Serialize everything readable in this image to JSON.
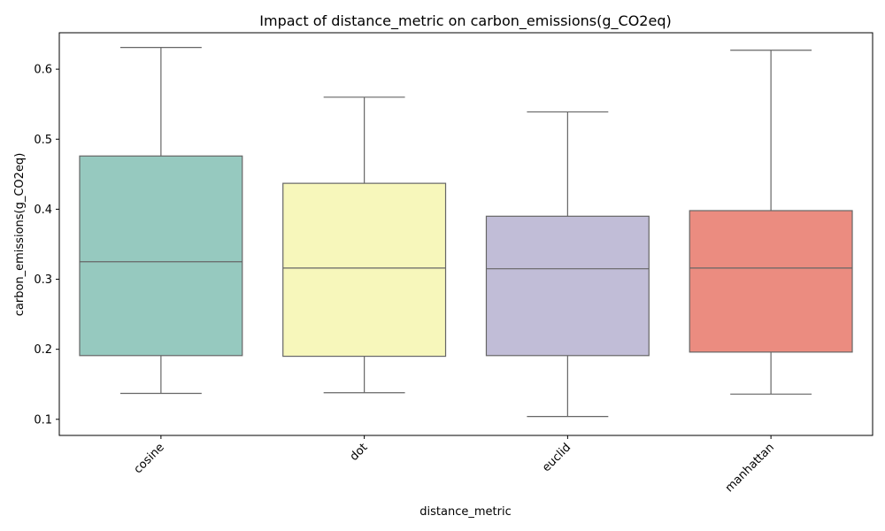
{
  "chart_data": {
    "type": "box",
    "title": "Impact of distance_metric on carbon_emissions(g_CO2eq)",
    "xlabel": "distance_metric",
    "ylabel": "carbon_emissions(g_CO2eq)",
    "ylim": [
      0.077,
      0.652
    ],
    "yticks": [
      0.1,
      0.2,
      0.3,
      0.4,
      0.5,
      0.6
    ],
    "ytick_labels": [
      "0.1",
      "0.2",
      "0.3",
      "0.4",
      "0.5",
      "0.6"
    ],
    "categories": [
      "cosine",
      "dot",
      "euclid",
      "manhattan"
    ],
    "boxes": [
      {
        "category": "cosine",
        "whisker_low": 0.137,
        "q1": 0.191,
        "median": 0.325,
        "q3": 0.476,
        "whisker_high": 0.631,
        "color": "#96c9bf"
      },
      {
        "category": "dot",
        "whisker_low": 0.138,
        "q1": 0.19,
        "median": 0.316,
        "q3": 0.437,
        "whisker_high": 0.56,
        "color": "#f7f7bb"
      },
      {
        "category": "euclid",
        "whisker_low": 0.104,
        "q1": 0.191,
        "median": 0.315,
        "q3": 0.39,
        "whisker_high": 0.539,
        "color": "#c1bdd7"
      },
      {
        "category": "manhattan",
        "whisker_low": 0.136,
        "q1": 0.196,
        "median": 0.316,
        "q3": 0.398,
        "whisker_high": 0.627,
        "color": "#eb8c80"
      }
    ],
    "grid": false,
    "legend": "none",
    "line_color": "#666666"
  }
}
